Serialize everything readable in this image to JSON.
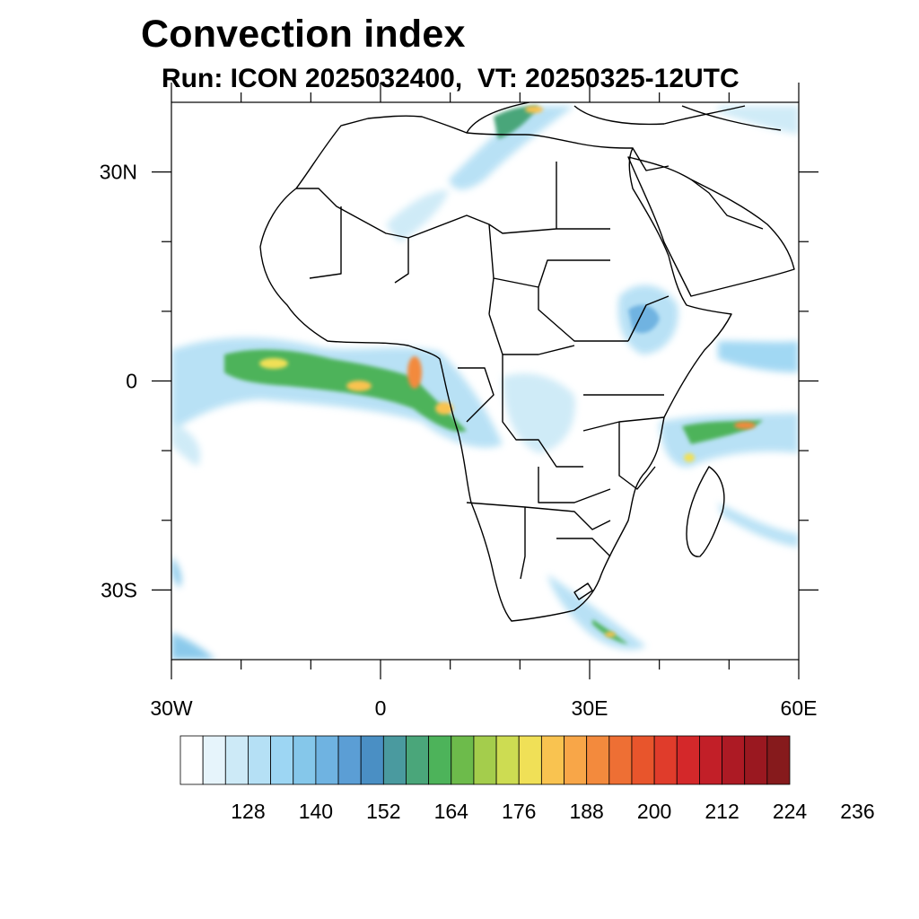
{
  "title": "Convection index",
  "subtitle": "Run: ICON 2025032400,  VT: 20250325-12UTC",
  "map": {
    "lon_range": [
      -30,
      60
    ],
    "lat_range": [
      -40,
      40
    ],
    "lon_tick_labels": [
      {
        "lon": -30,
        "label": "30W"
      },
      {
        "lon": 0,
        "label": "0"
      },
      {
        "lon": 30,
        "label": "30E"
      },
      {
        "lon": 60,
        "label": "60E"
      }
    ],
    "lat_tick_labels": [
      {
        "lat": 30,
        "label": "30N"
      },
      {
        "lat": 0,
        "label": "0"
      },
      {
        "lat": -30,
        "label": "30S"
      }
    ],
    "minor_lon_ticks": [
      -20,
      -10,
      10,
      20,
      40,
      50
    ],
    "minor_lat_ticks": [
      20,
      10,
      -10,
      -20
    ]
  },
  "colorbar": {
    "colors": [
      "#ffffff",
      "#e6f4fb",
      "#cdeaf7",
      "#b5e0f5",
      "#9dd6f3",
      "#85c7ea",
      "#6fb3e1",
      "#5b9ed5",
      "#4a8fc4",
      "#4a9a9f",
      "#4aa67a",
      "#4db35a",
      "#6dbb4b",
      "#a4cd4c",
      "#cddc52",
      "#f0e057",
      "#f9c350",
      "#f8a648",
      "#f38a3d",
      "#ee6f34",
      "#e8552c",
      "#e03c2b",
      "#d4282a",
      "#c21f28",
      "#ad1a24",
      "#9a1820",
      "#861a1c"
    ],
    "labels": [
      "128",
      "140",
      "152",
      "164",
      "176",
      "188",
      "200",
      "212",
      "224",
      "236"
    ]
  }
}
